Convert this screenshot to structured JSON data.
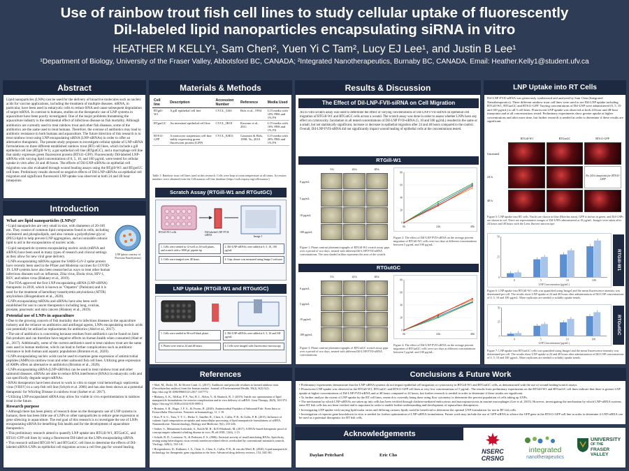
{
  "header": {
    "title_line1": "Use of rainbow trout fish cell lines to study cellular uptake of fluorescently",
    "title_line2": "DiI-labeled lipid nanoparticles encapsulating siRNA in vitro",
    "authors": "HEATHER M KELLY¹, Sam Chen², Yuen Yi C Tam², Lucy EJ Lee¹, and Justin B Lee¹",
    "affiliations": "¹Department of Biology, University of the Fraser Valley, Abbotsford BC, CANADA; ²Integrated Nanotherapeutics, Burnaby BC, CANADA. Email: Heather.Kelly1@student.ufv.ca"
  },
  "abstract": {
    "heading": "Abstract",
    "body": "Lipid nanoparticles (LNPs) can be used for the delivery of bioactive molecules such as nucleic acids for vaccine applications, including the treatment of multiple diseases. mRNA, in particular, have been used in eukaryotic cells to reduce RNA and cause subsequent degradation of target mRNA. In contrast to humans, studies on the therapeutic use of LNP systems in aquaculture have been poorly investigated. One of the major problems threatening the aquaculture industry is the detrimental effect of infectious disease on fish mortality. Although antibiotics are currently used to treat rainbow trout and other fish diseases, some of the antibiotics are the same used to treat humans. Therefore, the overuse of antibiotics may lead to antibiotic resistance in both humans and aquaculture. The future direction of this research is to treat rainbow trout using LNP encapsulating siRNA (LNP-siRNAs) in order to offer an alternative therapeutic. The present study proposes to investigate cellular uptake of LNP-siRNA formulations on three different established rainbow trout (RT) cell lines, which include a gill epithelial cell line (RTgill-W1), a gut epithelial cell line (RTgutGC), and a macrophage cell line that stably expresses green fluorescent protein (RTS11-GFP). Fluorescently DiI-labeled LNP-siRNAs with varying lipid concentrations of 0, 5, 10, and 100 µg/mL were tested for cellular uptake in vitro after 24 and 48 hours. The effects of DiI-LNP-siRNAs on epithelial cell migration was also evaluated through wound healing assays using the RTgill-W1 and RTgutGC cell lines. Preliminary results showed no negative effects of DiI-LNP-siRNAs on epithelial cell migration and significant fluorescent LNP uptake was observed at both 24 and 48 hour timepoints."
  },
  "introduction": {
    "heading": "Introduction",
    "q1": "What are lipid nanoparticles (LNPs)?",
    "q1_items": [
      "Lipid nanoparticles are very small in size, with diameters of 20-100 nm. They consist of common lipid components found in cells, including cholesterol and phospholipids, and also contain a polyethylene glycol (PEG)-lipid to help prevent LNP aggregation, and an ionizable cationic lipid to aid in the encapsulation of nucleic acids.",
      "Lipid nanoparticle systems encapsulating nucleic acids (mRNA and siRNA) have been used in many types of research and clinical settings as they allow for new viral gene delivery.",
      "LNPs encapsulating mRNAs against the SARS-CoV-2 spike protein have recently been used in the Pfizer and Moderna vaccines for COVID-19. LNP systems have also been researched as ways to treat other human infectious diseases such as influenza, Zika virus, Ebola virus, HIV-1, RSV, and rabies virus (Blakney et al., 2019).",
      "The FDA approved the first LNP encapsulating siRNA (LNP-siRNA) therapeutic in 2018, which is known as \"Onpattro\" (Patisiran) and it is used for the treatment of hereditary transthyretin amyloidosis (ATTR) amyloidosis (Hoogendoorn et al., 2020).",
      "LNPs encapsulating mRNAs and siRNAs have also been well-established for use in cancer therapeutics including lung, ovarian, prostate, pancreatic and skin cancers (Blakney et al., 2019)."
    ],
    "lnp_label": "LNP (photo courtesy of Precision NanoSystems)",
    "q2": "Potential use of LNPs in aquaculture",
    "q2_items": [
      "Due to the growing concern of fish mortality due to infectious diseases in the aquaculture industry and the reliance on antibiotics and antifungal agents, LNPs encapsulating nucleic acids can potentially be utilized as replacements for antibiotics (Abel et al., 2017).",
      "The use of antibiotics is concerning because residues from antibiotics can be found on farm fish products and can therefore have negative effects on human health when consumed (Abel et al., 2017). Additionally, some of the current antibiotics used to treat rainbow trout are the same ones used in human medicine, which can lead to further complications such as antibiotic resistance in both human and aquatic populations (Brunton et al., 2020).",
      "LNPs encapsulating nucleic acids can be used to examine gene expression of antimicrobial peptides (AMPs) in rainbow trout and other salmonid fish cell lines. Utilizing gene expression of AMPs offers an alternative to antibiotics (Brunton et al., 2020).",
      "LNPs encapsulating siRNA (LNP-siRNAs) can be used to treat rainbow trout and other salmonid diseases. siRNAs are able to reduce RNA interference (RNAi) in eukaryotic cells and can specifically degrade target mRNAs.",
      "RNAi therapeutics have been shown to work in vitro to target viral hemorrhagic septicemia virus (VHSV) in a carp fish cell line (Schyth et al. 2006) and has also been shown as a potential therapeutic for Whirling Disease in rainbow trout (Sarker et al. 2017).",
      "Utilizing LNP encapsulated siRNA may allow for viable in vivo experimentation in rainbow trout in the future."
    ],
    "q3": "Research purpose",
    "q3_items": [
      "Although there has been plenty of research done on the therapeutic use of LNP systems in humans, there has been little use of LNPs or other nanoparticles to reduce gene expression or gene silencing in aquaculture. The end goal of this research is to investigate the use of LNPs encapsulating siRNA for benefiting fish health and for the development of aquaculture therapeutics.",
      "This preliminary research aimed to quantify LNP uptake into RTGill-W1, RTGutGC, and RTS11-GFP cell lines by using a fluorescent DiI-label on the LNPs encapsulating siRNA.",
      "This research utilized RTGill-W1 and RTGutGC cell lines to determine the effects of DiI-labeled siRNA-LNPs on epithelial cell migration across a cell free gap for wound healing."
    ]
  },
  "methods": {
    "heading": "Materials & Methods",
    "table_headers": [
      "Cell line",
      "Description",
      "Accession Number",
      "Reference",
      "Media Used"
    ],
    "table_rows": [
      [
        "RTgill-W1",
        "A gill epithelial cell line",
        "CVCL_5461",
        "Bols et al., 1994",
        "L15 media with 10% FBS and 1% PS"
      ],
      [
        "RTgutGC",
        "An intestinal epithelial cell line",
        "CVCL_IR18",
        "Kawano et al., 2011",
        "L15 media with 10% FBS and 1% PS"
      ],
      [
        "RTS11-GFP",
        "A monocyte suspension cell line stably expressing green fluorescent protein (GFP)",
        "CVCL_KR31",
        "Ganassin & Bols, 1998; Yu, 2010",
        "L15 media with 20% FBS and 1% PS"
      ]
    ],
    "table_caption": "Table 1: Rainbow trout cell lines used in this research. Cells were kept at room temperature at all times. Accession numbers were obtained from the Cellosaurus cell line database (https://web.expasy.org/cellosaurus/)",
    "scratch_heading": "Scratch Assay (RTGill-W1 and RTGutGC)",
    "scratch_steps": [
      "1. Cells were seeded in 12-well or 24-well plates, and scratch with a 1000 µL pipette tip",
      "2. DiI-LNP-siRNAs were added at 0, 5, 10, 100 µg/mL",
      "3. Cells were imaged over 48 hours",
      "4. Gap closure was measured using Image J software"
    ],
    "scratch_labels": [
      "RTGill-W1 cells",
      "DiI-labeled LNP-FVII-siRNA",
      "Image J"
    ],
    "uptake_heading": "LNP Uptake (RTGill-W1 and RTGutGC)",
    "uptake_steps": [
      "1. Cells were seeded in 96-well black plates",
      "2. DiI-LNP-siRNAs were added at 0, 5, 10 and 100 µg/mL",
      "3. Plates were read at 24 and 48 hours",
      "4. Cells were imaged with fluorescence microscopy"
    ]
  },
  "results": {
    "heading": "Results & Discussion",
    "subheading": "The Effect of DiI-LNP-FVII-siRNA on Cell Migration",
    "intro_text": "An in vitro scratch assay was used to determine the effect of varying concentrations of DiI-LNP FVII-siRNA on epithelial cell migration of RTGill-W1 and RTGutGC cells across a wound. The scratch assay was done in order to assess whether LNPs have any effect on cytotoxicity. Incubation in all tested concentrations of DiI-LNP FVII-siRNA (5, 10 and 100 µg/mL) resulted in the same or a small, but not statistically significant, increase or decrease in epithelial migration after 24 and 48 hours compared to the control. Overall, DiI-LNP FVII-siRNA did not significantly impact wound healing of epithelial cells at the concentrations tested.",
    "band_gill": "RTGill-W1",
    "band_gut": "RTGutGC",
    "grid_cols": [
      "0 h",
      "24 h",
      "48 h"
    ],
    "grid_rows": [
      "0 µg/mL",
      "5 µg/mL",
      "10 µg/mL",
      "100 µg/mL"
    ],
    "fig1_caption": "Figure 1: Phase contrast photomicrographs of RTGill-W1 scratch assay gaps over a period of two days, treated with different DiI-LNP FVII-siRNA concentrations. The area shaded in blue represents the area of the scratch.",
    "fig2_caption": "Figure 2: The effect of DiI-LNP FVII-siRNA on the average percent migration of RTGill-W1 cells over two days at different concentrations between 5 µg/mL and 100 µg/mL.",
    "fig3_caption": "Figure 3: Phase contrast photomicrographs of RTGutGC scratch assay gaps over a period of two days, treated with different DiI-LNP FVII-siRNA concentrations.",
    "fig4_caption": "Figure 4: The effect of DiI-LNP FVII-siRNA on the average percent migration of RTGutGC cells over two days at different concentrations between 5 µg/mL and 100 µg/mL."
  },
  "uptake": {
    "heading": "LNP Uptake into RT Cells",
    "text": "DiI-LNP-FVII-siRNA was generously synthesized and analyzed by Sam Chen (Integrated Nanotherapeutics). Three different rainbow trout cell lines were used to see DiI-LNP uptake including RTGill-W1, RTGutGC and RTS11-GFP. Varying concentrations of DiI-LNP were administered (0, 5, 10 and 100 µg/mL) to all 3 cell lines. Fluorescent LNP uptake was observed at both 24-hour and 48-hour timepoints and at all concentrations tested. Preliminary experiments show greater uptake at higher concentrations and after more time, but further research is needed in order to determine if these results are significant.",
    "img_cols": [
      "RTGill-W1",
      "RTGutGC",
      "RTS11-GFP"
    ],
    "img_rows": [
      "Untreated",
      "24 h",
      "48 h"
    ],
    "na_label": "No 24 h timepoint for RTS11-GFP",
    "fig5_caption": "Figure 5: LNP uptake into RT cells. Nuclei are shown in blue (Hoechst stain), GFP is shown in green, and DiI-LNPs are shown in red. There are representative images of DiI-LNPs administered at 10 µg/mL. Images were taken after 24 hours and 48 hours with the Leitz fluovert microscope.",
    "side_gill": "RTGill-W1",
    "side_gut": "RTGutGC",
    "fig6_caption": "Figure 6: LNP uptake into RTGill-W1 cells was quantified using ImageJ and the mean fluorescence intensity was determined per cell. The results show LNP uptake at 24 and 48 hours after administration of DiI-LNP concentrations of 0, 5, 10 and 100 µg/mL. More replicates are needed to solidify uptake trends.",
    "fig7_caption": "Figure 7: LNP uptake into RTGutGC cells was quantified using ImageJ and the mean fluorescence intensity was determined per cell. The results show LNP uptake at 24 and 48 hours after administration of DiI-LNP concentrations of 0, 5, 10 and 100 µg/mL. More replicates are needed to solidify uptake trends."
  },
  "references": {
    "heading": "References",
    "items": [
      "Abel, M., Dufer, M., & Oliveri Conti, G. (2017). Antibiotic and pesticide residues in farmed rainbow trout (Oncorhynchus mykiss) from the Iranian market. Journal of Environmental Health, 39(2), 8(2):5(2). http://doi.org/10.1080/09603123.2017.1337772",
      "Blakney, A. K., McKay, P. F., Yus, B. I., Aldon, Y., & Shattock, R. J. (2019). Inside out: optimization of lipid nanoparticle formulations for exterior complexation and in vivo delivery of saRNA. Gene Therapy, 26(9), 363-372. https://doi.org/10.1038/s41434-019-0095-2",
      "Brunton, S. R., Hugo, J. F. A., & Owens, R. (2020). Antimicrobial Peptides of Salmonid Fish: From Intra to Extracellular Discoveries. Frontiers in Immunology, 11, 1-19.",
      "Kuo, P. S.-C., Tam, Y. Y. C., Heiko T., Sandler, R., Chen, S., Cullis, P. R., & Cullis, P. R. (2015). Influence of cationic lipid composition on uptake and intracellular processing of lipid nanoparticle formulations of siRNA. Nanomedicine: Nanotechnology, Biology and Medicine, 9(2), 233-246.",
      "Sarker, S., Menanteau-Ledouble, S., Kotob M. H., & El-Matbouli, M. (2017). A RNAi-based therapeutic proof of concept targets salmonid whirling disease in vivo. PLoS ONE, 12(6), 1-15.",
      "Schyth, B. D., Lorenzen, N., & Pedersen, F. S. (2006). Antiviral activity of small interfering RNAs: Specificity testing using heterologous virus reveals interferon-related effects overlooked by conventional mismatch controls. Virology, 349(1), 134-141.",
      "Hoogendoorn, D., Kulkarni, J. A., Chen, S., Chen, S., Cullis, P. R., & van der Meel, R. (2020). Lipid nanoparticle technology for therapeutic gene regulation in the liver. Advanced drug delivery reviews, 154, 344-361."
    ]
  },
  "conclusions": {
    "heading": "Conclusions & Future Work",
    "items": [
      "Preliminary experiments demonstrate that the LNP-siRNA systems do not impact epithelial cell migration or cytotoxicity in RTGill-W1 and RTGutGC cells, as demonstrated with the use of wound healing/scratch assays.",
      "Fluorescent LNP uptake was observed in the RTGill-W1, RTGutGC and RTS11-GFP cell lines at very low concentrations of 5 µg/mL. The results from preliminary experiments on the RTGill-W1 and RTGutGC cell lines indicate that there is greater LNP uptake at higher concentrations of DiI-LNP FVII-siRNA and at 48 hours compared to 24 hours, but further research is needed in order to determine if these results are significant.",
      "To further analyze the extent of LNP uptake by the RT cell lines, research is currently being done using flow cytometry to determine the percent population of cells taking up LNPs.",
      "The mechanism by which LNP-siRNAs are taken up into cells has been verified through clathrin-mediated endocytosis and macropinocytosis in murine macrophages (Lee et al. 2015). However, investigating the mechanism by which LNP-siRNA systems enter RT fish cells has not been verified and is important in order to enable further understanding and development of aquaculture therapeutics.",
      "Investigating LNP uptake with varying lipid molar ratios and differing cationic lipids could be beneficial to determine the optimal LNP formulation for use in RT fish cells.",
      "Investigation of reporter gene knockdown in vitro is needed for further optimization of LNP-siRNA formulations. Future work may include the use of GFP-siRNA to silence the GFP gene in the RTS11-GFP cell line in order to determine if LNP-siRNA can be used as a potential therapeutic for RT fish cells."
    ]
  },
  "acknowledgements": {
    "heading": "Acknowledgements",
    "names": [
      "Daylan Pritchard",
      "Eric Cho"
    ],
    "logo_nserc_1": "NSERC",
    "logo_nserc_2": "CRSNG",
    "logo_integrated_1": "integrated",
    "logo_integrated_2": "nanotherapeutics",
    "logo_ufv_1": "UNIVERSITY",
    "logo_ufv_2": "OF THE",
    "logo_ufv_3": "FRASER VALLEY"
  },
  "chart_data": [
    {
      "type": "line",
      "x": [
        "0h",
        "24h",
        "48h"
      ],
      "series": [
        {
          "values": [
            0,
            30,
            60
          ],
          "color": "#1f77b4"
        },
        {
          "values": [
            0,
            28,
            55
          ],
          "color": "#ff7f0e"
        },
        {
          "values": [
            0,
            33,
            62
          ],
          "color": "#2ca02c"
        },
        {
          "values": [
            0,
            27,
            58
          ],
          "color": "#d62728"
        }
      ],
      "ylim": [
        0,
        80
      ]
    },
    {
      "type": "line",
      "x": [
        "0h",
        "24h",
        "48h"
      ],
      "series": [
        {
          "values": [
            0,
            22,
            45
          ],
          "color": "#1f77b4"
        },
        {
          "values": [
            0,
            25,
            48
          ],
          "color": "#ff7f0e"
        },
        {
          "values": [
            0,
            20,
            44
          ],
          "color": "#2ca02c"
        },
        {
          "values": [
            0,
            24,
            50
          ],
          "color": "#d62728"
        }
      ],
      "ylim": [
        0,
        80
      ]
    },
    {
      "type": "bar",
      "categories": [
        "0",
        "5",
        "10",
        "100"
      ],
      "xlabel": "LNP Concentration (µg/mL)",
      "series": [
        {
          "values": [
            5,
            22,
            28,
            38
          ],
          "color": "#5b8fd1"
        },
        {
          "values": [
            6,
            25,
            33,
            45
          ],
          "color": "#a8c4e8"
        }
      ],
      "ylim": [
        0,
        50
      ]
    },
    {
      "type": "bar",
      "categories": [
        "0",
        "5",
        "10",
        "100"
      ],
      "xlabel": "LNP Concentration (µg/mL)",
      "series": [
        {
          "values": [
            4,
            18,
            24,
            35
          ],
          "color": "#5b8fd1"
        },
        {
          "values": [
            5,
            21,
            30,
            42
          ],
          "color": "#a8c4e8"
        }
      ],
      "ylim": [
        0,
        50
      ]
    }
  ]
}
